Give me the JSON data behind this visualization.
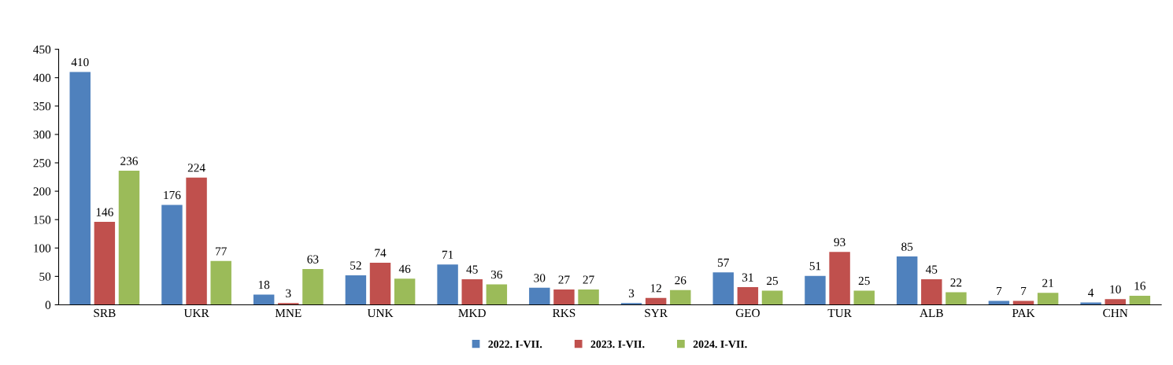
{
  "chart_data": {
    "type": "bar",
    "categories": [
      "SRB",
      "UKR",
      "MNE",
      "UNK",
      "MKD",
      "RKS",
      "SYR",
      "GEO",
      "TUR",
      "ALB",
      "PAK",
      "CHN"
    ],
    "series": [
      {
        "name": "2022. I-VII.",
        "color": "#4f81bd",
        "values": [
          410,
          176,
          18,
          52,
          71,
          30,
          3,
          57,
          51,
          85,
          7,
          4
        ]
      },
      {
        "name": "2023. I-VII.",
        "color": "#c0504d",
        "values": [
          146,
          224,
          3,
          74,
          45,
          27,
          12,
          31,
          93,
          45,
          7,
          10
        ]
      },
      {
        "name": "2024. I-VII.",
        "color": "#9bbb59",
        "values": [
          236,
          77,
          63,
          46,
          36,
          27,
          26,
          25,
          25,
          22,
          21,
          16
        ]
      }
    ],
    "ylim": [
      0,
      450
    ],
    "yticks": [
      0,
      50,
      100,
      150,
      200,
      250,
      300,
      350,
      400,
      450
    ],
    "data_labels": true,
    "legend": "bottom",
    "grid": false
  }
}
